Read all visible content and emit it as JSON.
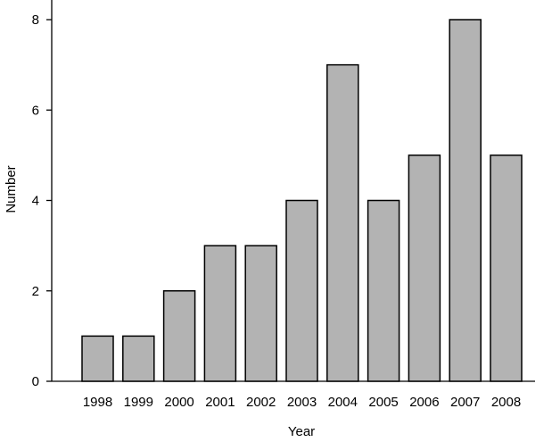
{
  "chart_data": {
    "type": "bar",
    "categories": [
      "1998",
      "1999",
      "2000",
      "2001",
      "2002",
      "2003",
      "2004",
      "2005",
      "2006",
      "2007",
      "2008"
    ],
    "values": [
      1,
      1,
      2,
      3,
      3,
      4,
      7,
      4,
      5,
      8,
      5
    ],
    "color": "#b3b3b3",
    "xlabel": "Year",
    "ylabel": "Number",
    "ylim": [
      0,
      8
    ],
    "yticks": [
      0,
      2,
      4,
      6,
      8
    ],
    "grid": false
  }
}
